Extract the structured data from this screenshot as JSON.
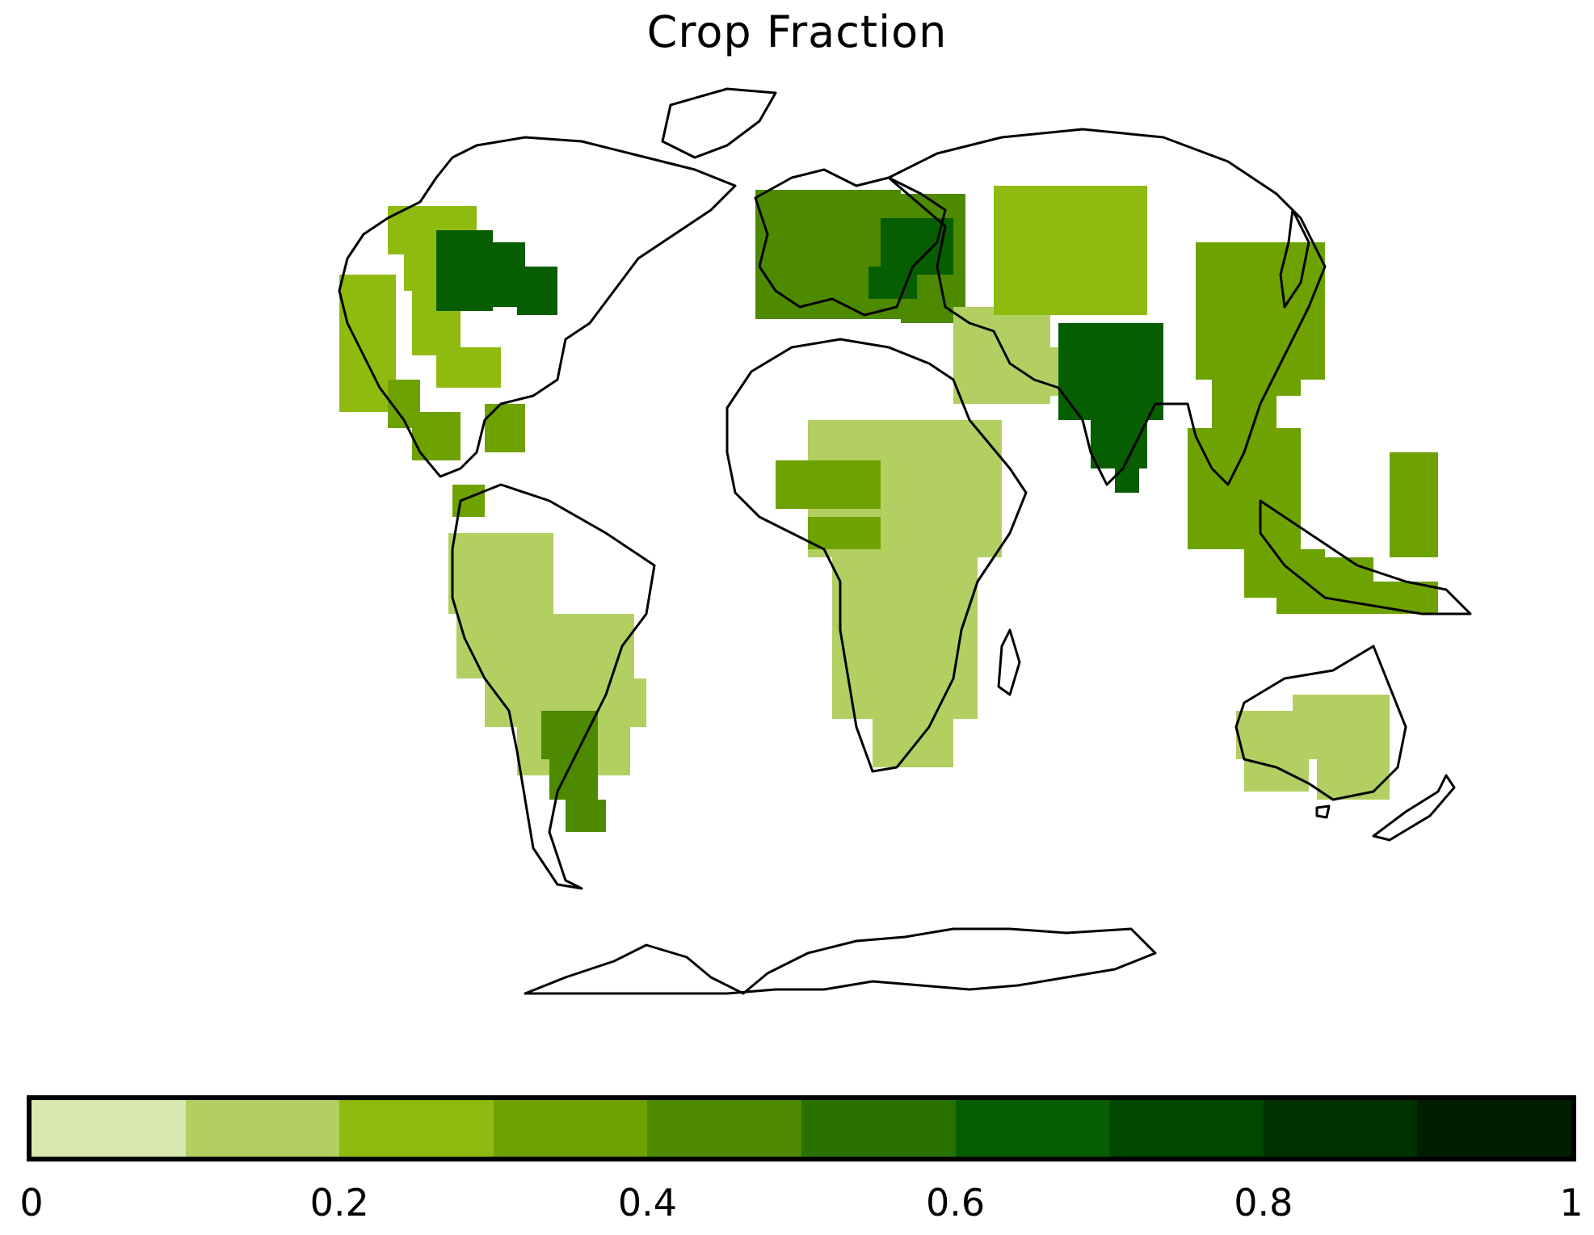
{
  "title": "Crop Fraction",
  "colorbar": {
    "ticks": [
      "0",
      "0.2",
      "0.4",
      "0.6",
      "0.8",
      "1"
    ],
    "bins": [
      {
        "range": [
          0.0,
          0.1
        ],
        "color": "#d8e8b0"
      },
      {
        "range": [
          0.1,
          0.2
        ],
        "color": "#b2cf62"
      },
      {
        "range": [
          0.2,
          0.3
        ],
        "color": "#8fbb10"
      },
      {
        "range": [
          0.3,
          0.4
        ],
        "color": "#6ea200"
      },
      {
        "range": [
          0.4,
          0.5
        ],
        "color": "#4d8a00"
      },
      {
        "range": [
          0.5,
          0.6
        ],
        "color": "#2a7200"
      },
      {
        "range": [
          0.6,
          0.7
        ],
        "color": "#075e00"
      },
      {
        "range": [
          0.7,
          0.8
        ],
        "color": "#004800"
      },
      {
        "range": [
          0.8,
          0.9
        ],
        "color": "#003200"
      },
      {
        "range": [
          0.9,
          1.0
        ],
        "color": "#001d00"
      }
    ]
  },
  "map": {
    "projection": "world map with continental coastlines",
    "coastline_color": "#000000",
    "data_regions": [
      {
        "region": "North America",
        "level": 0.2
      },
      {
        "region": "US Midwest",
        "level": 0.6
      },
      {
        "region": "Central America",
        "level": 0.3
      },
      {
        "region": "South America",
        "level": 0.1
      },
      {
        "region": "South America pampas",
        "level": 0.4
      },
      {
        "region": "Europe",
        "level": 0.4
      },
      {
        "region": "Ukraine",
        "level": 0.6
      },
      {
        "region": "Africa",
        "level": 0.1
      },
      {
        "region": "West Africa",
        "level": 0.3
      },
      {
        "region": "Middle East",
        "level": 0.15
      },
      {
        "region": "Central Asia",
        "level": 0.2
      },
      {
        "region": "India",
        "level": 0.6
      },
      {
        "region": "China",
        "level": 0.3
      },
      {
        "region": "Southeast Asia",
        "level": 0.3
      },
      {
        "region": "Indonesia",
        "level": 0.3
      },
      {
        "region": "Australia",
        "level": 0.1
      }
    ]
  }
}
